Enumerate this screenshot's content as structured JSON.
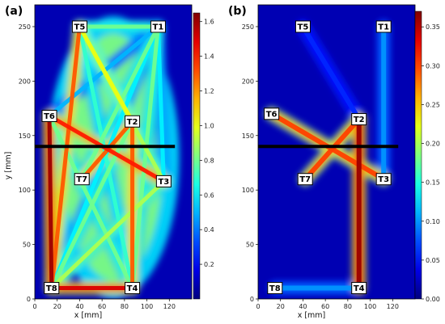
{
  "chart_data": [
    {
      "type": "heatmap",
      "panel_label": "(a)",
      "xlabel": "x [mm]",
      "ylabel": "y [mm]",
      "xlim": [
        0,
        140
      ],
      "ylim": [
        0,
        270
      ],
      "xticks": [
        0,
        20,
        40,
        60,
        80,
        100,
        120
      ],
      "yticks": [
        0,
        50,
        100,
        150,
        200,
        250
      ],
      "colorbar": {
        "min": 0.0,
        "max": 1.65,
        "ticks": [
          "0.2",
          "0.4",
          "0.6",
          "0.8",
          "1.0",
          "1.2",
          "1.4",
          "1.6"
        ],
        "tick_values": [
          0.2,
          0.4,
          0.6,
          0.8,
          1.0,
          1.2,
          1.4,
          1.6
        ]
      },
      "transducers": [
        {
          "name": "T1",
          "x": 110,
          "y": 250
        },
        {
          "name": "T2",
          "x": 87,
          "y": 163
        },
        {
          "name": "T3",
          "x": 115,
          "y": 108
        },
        {
          "name": "T4",
          "x": 87,
          "y": 10
        },
        {
          "name": "T5",
          "x": 40,
          "y": 250
        },
        {
          "name": "T6",
          "x": 13,
          "y": 168
        },
        {
          "name": "T7",
          "x": 42,
          "y": 110
        },
        {
          "name": "T8",
          "x": 15,
          "y": 10
        }
      ],
      "paths": [
        {
          "from": "T8",
          "to": "T6",
          "intensity": 1.6
        },
        {
          "from": "T8",
          "to": "T5",
          "intensity": 1.3
        },
        {
          "from": "T8",
          "to": "T4",
          "intensity": 1.5
        },
        {
          "from": "T4",
          "to": "T2",
          "intensity": 1.3
        },
        {
          "from": "T6",
          "to": "T3",
          "intensity": 1.4
        },
        {
          "from": "T2",
          "to": "T7",
          "intensity": 1.3
        },
        {
          "from": "T5",
          "to": "T1",
          "intensity": 0.8
        },
        {
          "from": "T5",
          "to": "T2",
          "intensity": 1.0
        },
        {
          "from": "T5",
          "to": "T3",
          "intensity": 0.9
        },
        {
          "from": "T1",
          "to": "T7",
          "intensity": 0.8
        },
        {
          "from": "T1",
          "to": "T4",
          "intensity": 0.8
        },
        {
          "from": "T8",
          "to": "T3",
          "intensity": 0.9
        },
        {
          "from": "T4",
          "to": "T6",
          "intensity": 0.8
        },
        {
          "from": "T8",
          "to": "T2",
          "intensity": 0.8
        },
        {
          "from": "T5",
          "to": "T4",
          "intensity": 0.7
        },
        {
          "from": "T1",
          "to": "T8",
          "intensity": 0.6
        },
        {
          "from": "T1",
          "to": "T3",
          "intensity": 0.6
        },
        {
          "from": "T6",
          "to": "T1",
          "intensity": 0.5
        }
      ],
      "black_line": {
        "x": [
          0,
          125
        ],
        "y": 140
      }
    },
    {
      "type": "heatmap",
      "panel_label": "(b)",
      "xlabel": "x [mm]",
      "ylabel": "",
      "xlim": [
        0,
        140
      ],
      "ylim": [
        0,
        270
      ],
      "xticks": [
        0,
        20,
        40,
        60,
        80,
        100,
        120
      ],
      "yticks": [
        0,
        50,
        100,
        150,
        200,
        250
      ],
      "colorbar": {
        "min": 0.0,
        "max": 0.37,
        "ticks": [
          "0.00",
          "0.05",
          "0.10",
          "0.15",
          "0.20",
          "0.25",
          "0.30",
          "0.35"
        ],
        "tick_values": [
          0,
          0.05,
          0.1,
          0.15,
          0.2,
          0.25,
          0.3,
          0.35
        ]
      },
      "transducers": [
        {
          "name": "T1",
          "x": 112,
          "y": 250
        },
        {
          "name": "T2",
          "x": 90,
          "y": 165
        },
        {
          "name": "T3",
          "x": 112,
          "y": 110
        },
        {
          "name": "T4",
          "x": 90,
          "y": 10
        },
        {
          "name": "T5",
          "x": 40,
          "y": 250
        },
        {
          "name": "T6",
          "x": 12,
          "y": 170
        },
        {
          "name": "T7",
          "x": 42,
          "y": 110
        },
        {
          "name": "T8",
          "x": 15,
          "y": 10
        }
      ],
      "paths": [
        {
          "from": "T4",
          "to": "T2",
          "intensity": 0.36
        },
        {
          "from": "T6",
          "to": "T3",
          "intensity": 0.3
        },
        {
          "from": "T2",
          "to": "T7",
          "intensity": 0.3
        },
        {
          "from": "T1",
          "to": "T3",
          "intensity": 0.1
        },
        {
          "from": "T5",
          "to": "T2",
          "intensity": 0.06
        },
        {
          "from": "T8",
          "to": "T4",
          "intensity": 0.1
        }
      ],
      "black_line": {
        "x": [
          0,
          125
        ],
        "y": 140
      }
    }
  ]
}
